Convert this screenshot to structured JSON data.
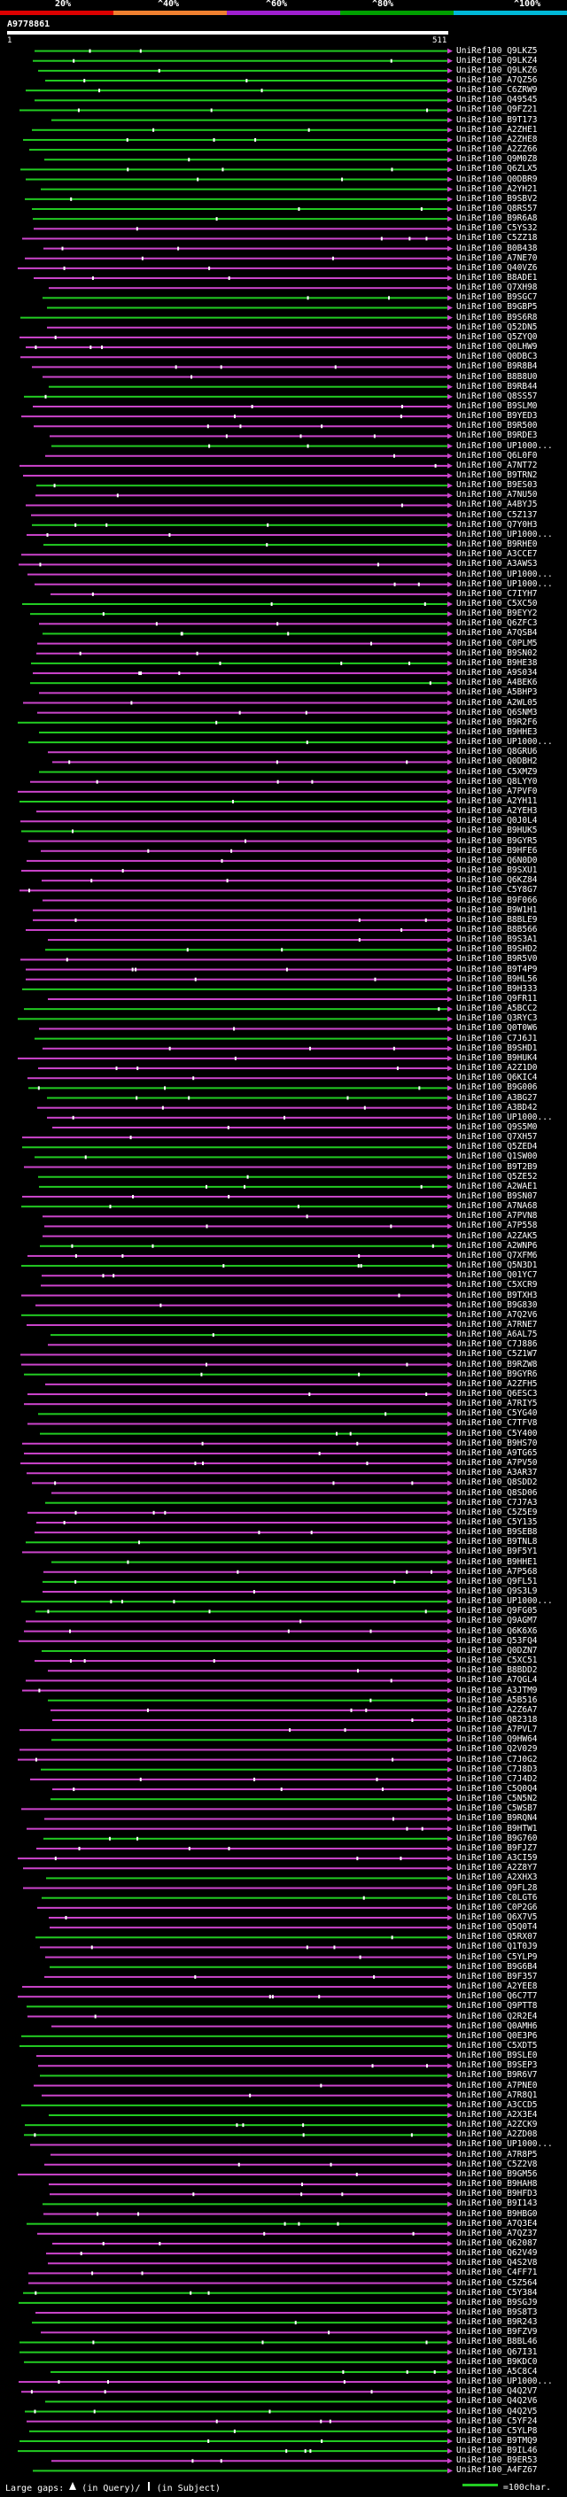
{
  "scale": {
    "labels": [
      "20%",
      "^40%",
      "^60%",
      "^80%",
      "^100%"
    ],
    "colors": [
      "#dd0000",
      "#f08030",
      "#a020d0",
      "#00a000",
      "#00b8d8"
    ]
  },
  "query": {
    "id": "A9778861",
    "start": "1",
    "end": "511"
  },
  "colors": {
    "green": "#22cc22",
    "magenta": "#cc44cc",
    "white": "#ffffff",
    "background": "#000000"
  },
  "hits": [
    "UniRef100_Q9LKZ5",
    "UniRef100_Q9LKZ4",
    "UniRef100_Q9LKZ6",
    "UniRef100_A7QZ56",
    "UniRef100_C6ZRW9",
    "UniRef100_Q49545",
    "UniRef100_Q9FZ21",
    "UniRef100_B9T173",
    "UniRef100_A2ZHE1",
    "UniRef100_A2ZHE8",
    "UniRef100_A2ZZ66",
    "UniRef100_Q9M0Z8",
    "UniRef100_Q6ZLX5",
    "UniRef100_Q0DBR9",
    "UniRef100_A2YH21",
    "UniRef100_B9SBV2",
    "UniRef100_Q8RS57",
    "UniRef100_B9R6A8",
    "UniRef100_C5YS32",
    "UniRef100_C5ZZ18",
    "UniRef100_B0B438",
    "UniRef100_A7NE70",
    "UniRef100_Q40VZ6",
    "UniRef100_B8ADE1",
    "UniRef100_Q7XH98",
    "UniRef100_B9SGC7",
    "UniRef100_B9GBP5",
    "UniRef100_B9S6R8",
    "UniRef100_Q52DN5",
    "UniRef100_Q5ZYQ0",
    "UniRef100_Q0LHW9",
    "UniRef100_Q0DBC3",
    "UniRef100_B9R8B4",
    "UniRef100_B8B8U0",
    "UniRef100_B9RB44",
    "UniRef100_Q8SS57",
    "UniRef100_B9SLM0",
    "UniRef100_B9YED3",
    "UniRef100_B9R500",
    "UniRef100_B9RDE3",
    "UniRef100_UP1000...",
    "UniRef100_Q6L0F0",
    "UniRef100_A7NT72",
    "UniRef100_B9TRN2",
    "UniRef100_B9ES03",
    "UniRef100_A7NU50",
    "UniRef100_A4BYJ5",
    "UniRef100_C5Z137",
    "UniRef100_Q7Y0H3",
    "UniRef100_UP1000...",
    "UniRef100_B9RHE0",
    "UniRef100_A3CCE7",
    "UniRef100_A3AWS3",
    "UniRef100_UP1000...",
    "UniRef100_UP1000...",
    "UniRef100_C7IYH7",
    "UniRef100_C5XC50",
    "UniRef100_B9EYY2",
    "UniRef100_Q6ZFC3",
    "UniRef100_A7QSB4",
    "UniRef100_C0PLM5",
    "UniRef100_B9SN02",
    "UniRef100_B9HE38",
    "UniRef100_A9S034",
    "UniRef100_A4BEK6",
    "UniRef100_A5BHP3",
    "UniRef100_A2WL05",
    "UniRef100_Q6SNM3",
    "UniRef100_B9R2F6",
    "UniRef100_B9HHE3",
    "UniRef100_UP1000...",
    "UniRef100_Q8GRU6",
    "UniRef100_Q0DBH2",
    "UniRef100_C5XMZ9",
    "UniRef100_Q8LYY0",
    "UniRef100_A7PVF0",
    "UniRef100_A2YH11",
    "UniRef100_A2YEH3",
    "UniRef100_Q0J0L4",
    "UniRef100_B9HUK5",
    "UniRef100_B9GYR5",
    "UniRef100_B9HFE6",
    "UniRef100_Q6N0D0",
    "UniRef100_B9SXU1",
    "UniRef100_Q6KZ84",
    "UniRef100_C5Y8G7",
    "UniRef100_B9F066",
    "UniRef100_B9W1H1",
    "UniRef100_B8BLE9",
    "UniRef100_B8B566",
    "UniRef100_B9S3A1",
    "UniRef100_B9SHD2",
    "UniRef100_B9R5V0",
    "UniRef100_B9T4P9",
    "UniRef100_B9HL56",
    "UniRef100_B9H333",
    "UniRef100_Q9FR11",
    "UniRef100_A5BCC2",
    "UniRef100_Q3RYC3",
    "UniRef100_Q0T0W6",
    "UniRef100_C7J6J1",
    "UniRef100_B9SHD1",
    "UniRef100_B9HUK4",
    "UniRef100_A2Z1D0",
    "UniRef100_Q6KIC4",
    "UniRef100_B9G006",
    "UniRef100_A3BG27",
    "UniRef100_A3BD42",
    "UniRef100_UP1000...",
    "UniRef100_Q9S5M0",
    "UniRef100_Q7XH57",
    "UniRef100_Q5ZED4",
    "UniRef100_Q1SW00",
    "UniRef100_B9T2B9",
    "UniRef100_Q5ZE52",
    "UniRef100_A2WAE1",
    "UniRef100_B9SN07",
    "UniRef100_A7NA68",
    "UniRef100_A7PVN8",
    "UniRef100_A7P558",
    "UniRef100_A2ZAK5",
    "UniRef100_A2WNP6",
    "UniRef100_Q7XFM6",
    "UniRef100_Q5N3D1",
    "UniRef100_Q01YC7",
    "UniRef100_C5XCR9",
    "UniRef100_B9TXH3",
    "UniRef100_B9G830",
    "UniRef100_A7Q2V6",
    "UniRef100_A7RNE7",
    "UniRef100_A6AL75",
    "UniRef100_C7J886",
    "UniRef100_C5Z1W7",
    "UniRef100_B9RZW8",
    "UniRef100_B9GYR6",
    "UniRef100_A2ZFH5",
    "UniRef100_Q6ESC3",
    "UniRef100_A7RIY5",
    "UniRef100_C5YG40",
    "UniRef100_C7TFV8",
    "UniRef100_C5Y400",
    "UniRef100_B9HS70",
    "UniRef100_A9TG65",
    "UniRef100_A7PV50",
    "UniRef100_A3AR37",
    "UniRef100_Q8SDD2",
    "UniRef100_Q8SD06",
    "UniRef100_C7J7A3",
    "UniRef100_C5Z5E9",
    "UniRef100_C5Y135",
    "UniRef100_B9SEB8",
    "UniRef100_B9TNL8",
    "UniRef100_B9F5Y1",
    "UniRef100_B9HHE1",
    "UniRef100_A7P568",
    "UniRef100_Q9FL51",
    "UniRef100_Q9S3L9",
    "UniRef100_UP1000...",
    "UniRef100_Q9FG05",
    "UniRef100_Q9AGM7",
    "UniRef100_Q6K6X6",
    "UniRef100_Q53FQ4",
    "UniRef100_Q0DZN7",
    "UniRef100_C5XC51",
    "UniRef100_B8BDD2",
    "UniRef100_A7QGL4",
    "UniRef100_A3JTM9",
    "UniRef100_A5B516",
    "UniRef100_A2Z6A7",
    "UniRef100_Q82318",
    "UniRef100_A7PVL7",
    "UniRef100_Q9HW64",
    "UniRef100_Q2V029",
    "UniRef100_C7J0G2",
    "UniRef100_C7J8D3",
    "UniRef100_C7J4D2",
    "UniRef100_C5Q0Q4",
    "UniRef100_C5N5N2",
    "UniRef100_C5WSB7",
    "UniRef100_B9RQN4",
    "UniRef100_B9HTW1",
    "UniRef100_B9G760",
    "UniRef100_B9FJZ7",
    "UniRef100_A3CI59",
    "UniRef100_A2Z8Y7",
    "UniRef100_A2XHX3",
    "UniRef100_Q9FL28",
    "UniRef100_C0LGT6",
    "UniRef100_C0P2G6",
    "UniRef100_Q6X7V5",
    "UniRef100_Q5Q0T4",
    "UniRef100_Q5RX07",
    "UniRef100_Q1T0J9",
    "UniRef100_C5YLP9",
    "UniRef100_B9G6B4",
    "UniRef100_B9F357",
    "UniRef100_A2YEE8",
    "UniRef100_Q6C7T7",
    "UniRef100_Q9PTT8",
    "UniRef100_Q2R2E4",
    "UniRef100_Q0AMH6",
    "UniRef100_Q0E3P6",
    "UniRef100_C5XDT5",
    "UniRef100_B9SLE0",
    "UniRef100_B9SEP3",
    "UniRef100_B9R6V7",
    "UniRef100_A7PNE0",
    "UniRef100_A7R8Q1",
    "UniRef100_A3CCD5",
    "UniRef100_A2X3E4",
    "UniRef100_A2ZCK9",
    "UniRef100_A2ZD08",
    "UniRef100_UP1000...",
    "UniRef100_A7R8P5",
    "UniRef100_C5Z2V8",
    "UniRef100_B9GM56",
    "UniRef100_B9HAH8",
    "UniRef100_B9HFD3",
    "UniRef100_B9I143",
    "UniRef100_B9HBG0",
    "UniRef100_A7Q3E4",
    "UniRef100_A7QZ37",
    "UniRef100_Q62087",
    "UniRef100_Q62V49",
    "UniRef100_Q4S2V8",
    "UniRef100_C4FF71",
    "UniRef100_C5Z564",
    "UniRef100_C5Y384",
    "UniRef100_B9SGJ9",
    "UniRef100_B9S8T3",
    "UniRef100_B9R243",
    "UniRef100_B9FZV9",
    "UniRef100_B8BL46",
    "UniRef100_Q67I31",
    "UniRef100_B9KDC0",
    "UniRef100_A5C8C4",
    "UniRef100_UP1000...",
    "UniRef100_Q4Q2V7",
    "UniRef100_Q4Q2V6",
    "UniRef100_Q4Q2V5",
    "UniRef100_C5YF24",
    "UniRef100_C5YLP8",
    "UniRef100_B9TMQ9",
    "UniRef100_B9IL46",
    "UniRef100_B9ER53",
    "UniRef100_A4FZ67"
  ],
  "legend": {
    "text": "Large gaps:",
    "query_text": "(in Query)/",
    "subject_text": "(in Subject)",
    "right_text": "=100char."
  }
}
